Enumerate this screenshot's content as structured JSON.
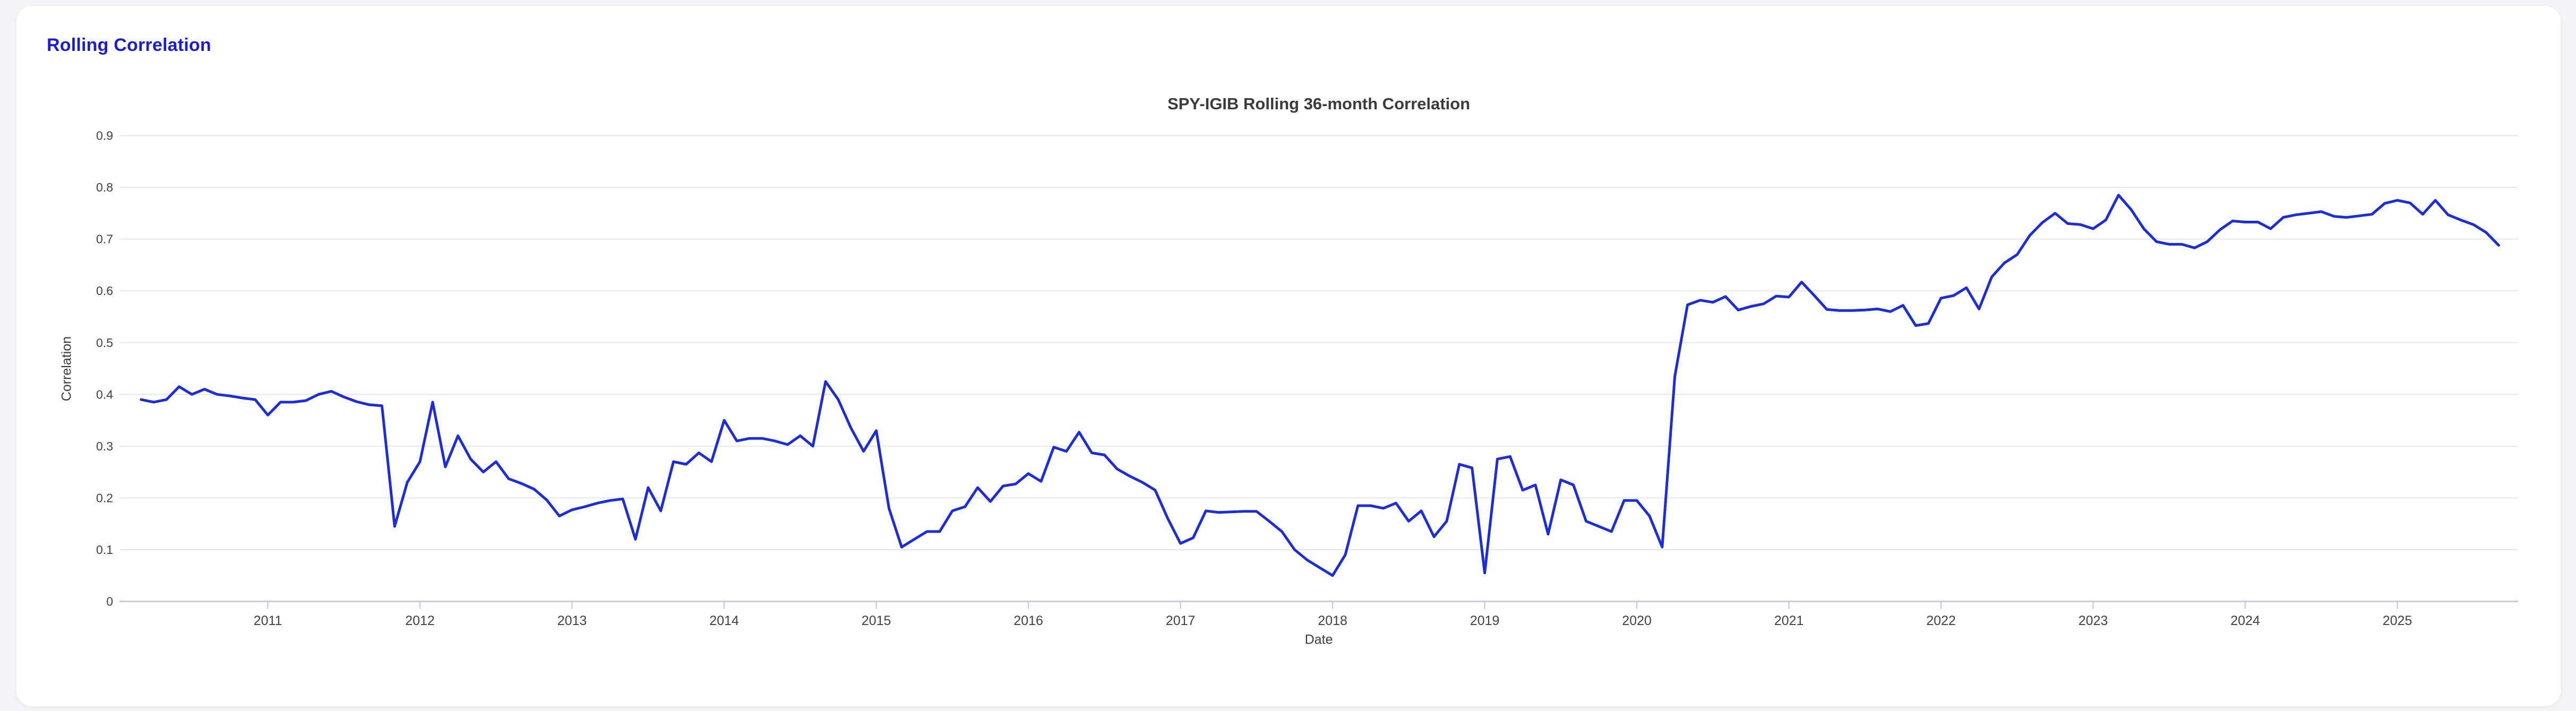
{
  "header": {
    "heading": "Rolling Correlation"
  },
  "colors": {
    "accent_blue": "#1b1be0",
    "line_blue": "#1b2ce0",
    "gridline": "#e7e7e9",
    "axis_line": "#c7cee4",
    "text_dark": "#3b3b3b",
    "tick_text": "#424242",
    "page_bg": "#f4f4f6",
    "card_bg": "#ffffff"
  },
  "chart_data": {
    "type": "line",
    "title": "SPY-IGIB Rolling 36-month Correlation",
    "xlabel": "Date",
    "ylabel": "Correlation",
    "frequency": "monthly",
    "x_start": "2010-03",
    "x_end": "2025-09",
    "x_tick_labels": [
      "2011",
      "2012",
      "2013",
      "2014",
      "2015",
      "2016",
      "2017",
      "2018",
      "2019",
      "2020",
      "2021",
      "2022",
      "2023",
      "2024",
      "2025"
    ],
    "y_tick_labels": [
      "0",
      "0.1",
      "0.2",
      "0.3",
      "0.4",
      "0.5",
      "0.6",
      "0.7",
      "0.8",
      "0.9"
    ],
    "ylim": [
      0,
      0.9
    ],
    "grid": true,
    "legend_position": "none",
    "series": [
      {
        "name": "SPY-IGIB rolling 36-month correlation",
        "color": "#1b2ce0",
        "values": [
          0.39,
          0.385,
          0.39,
          0.415,
          0.4,
          0.41,
          0.4,
          0.397,
          0.393,
          0.39,
          0.36,
          0.385,
          0.385,
          0.388,
          0.4,
          0.406,
          0.395,
          0.386,
          0.38,
          0.378,
          0.145,
          0.23,
          0.27,
          0.385,
          0.26,
          0.32,
          0.275,
          0.25,
          0.27,
          0.237,
          0.228,
          0.217,
          0.196,
          0.165,
          0.177,
          0.183,
          0.19,
          0.195,
          0.198,
          0.12,
          0.22,
          0.175,
          0.27,
          0.265,
          0.287,
          0.27,
          0.35,
          0.31,
          0.315,
          0.315,
          0.31,
          0.303,
          0.32,
          0.3,
          0.425,
          0.39,
          0.335,
          0.29,
          0.33,
          0.18,
          0.105,
          0.12,
          0.135,
          0.135,
          0.175,
          0.183,
          0.22,
          0.193,
          0.223,
          0.227,
          0.247,
          0.232,
          0.298,
          0.29,
          0.327,
          0.287,
          0.283,
          0.256,
          0.242,
          0.23,
          0.215,
          0.16,
          0.112,
          0.123,
          0.175,
          0.172,
          0.173,
          0.174,
          0.174,
          0.155,
          0.135,
          0.1,
          0.08,
          0.065,
          0.05,
          0.09,
          0.185,
          0.185,
          0.18,
          0.19,
          0.155,
          0.175,
          0.125,
          0.155,
          0.265,
          0.258,
          0.055,
          0.275,
          0.28,
          0.215,
          0.225,
          0.13,
          0.235,
          0.225,
          0.155,
          0.145,
          0.135,
          0.195,
          0.195,
          0.165,
          0.105,
          0.435,
          0.573,
          0.582,
          0.578,
          0.589,
          0.563,
          0.57,
          0.575,
          0.59,
          0.588,
          0.617,
          0.591,
          0.564,
          0.562,
          0.562,
          0.563,
          0.565,
          0.56,
          0.572,
          0.533,
          0.537,
          0.586,
          0.591,
          0.606,
          0.565,
          0.627,
          0.654,
          0.67,
          0.707,
          0.732,
          0.75,
          0.73,
          0.728,
          0.72,
          0.737,
          0.785,
          0.757,
          0.72,
          0.695,
          0.69,
          0.69,
          0.683,
          0.695,
          0.718,
          0.735,
          0.733,
          0.733,
          0.72,
          0.742,
          0.747,
          0.75,
          0.753,
          0.744,
          0.742,
          0.745,
          0.748,
          0.769,
          0.775,
          0.77,
          0.748,
          0.775,
          0.747,
          0.737,
          0.728,
          0.713,
          0.688
        ]
      }
    ]
  }
}
